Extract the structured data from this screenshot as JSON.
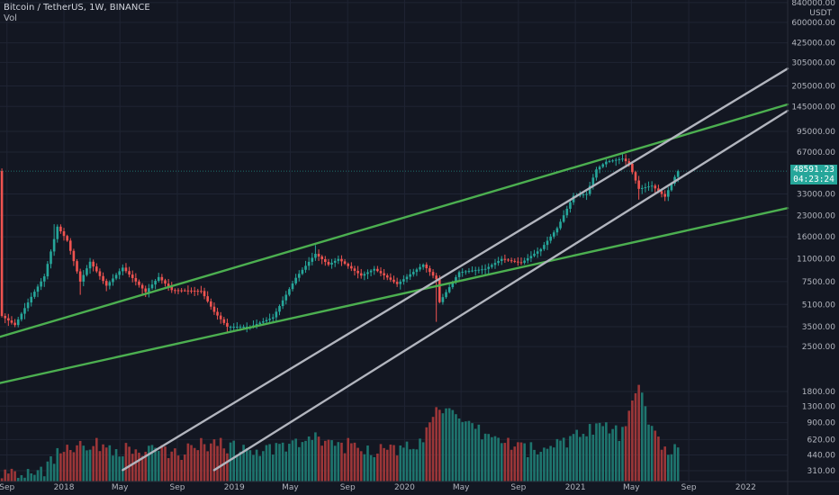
{
  "header": {
    "title": "Bitcoin / TetherUS, 1W, BINANCE",
    "volume_label": "Vol"
  },
  "price_axis": {
    "unit": "USDT"
  },
  "last_price_tag": {
    "price": "48591.23",
    "countdown": "04:23:24"
  },
  "colors": {
    "background": "#131722",
    "up": "#26a69a",
    "down": "#ef5350",
    "green_line": "#4caf50",
    "gray_line": "#b2b5be",
    "axis_text": "#b2b5be"
  },
  "chart_data": {
    "type": "candlestick",
    "title": "Bitcoin / TetherUS, 1W, BINANCE",
    "y_scale": "log",
    "y_tick_labels": [
      840000,
      600000,
      425000,
      305000,
      205000,
      145000,
      95000,
      67000,
      48591.23,
      33000,
      23000,
      16000,
      11000,
      7500,
      5100,
      3500,
      2500
    ],
    "volume_tick_labels": [
      1800,
      1300,
      900,
      620,
      440,
      310
    ],
    "x_tick_labels": [
      "Sep",
      "2018",
      "May",
      "Sep",
      "2019",
      "May",
      "Sep",
      "2020",
      "May",
      "Sep",
      "2021",
      "May",
      "Sep",
      "2022"
    ],
    "x_range": [
      "2017-08-17",
      "2022-04-01"
    ],
    "anchors": [
      {
        "date": "2017-08-21",
        "price": 4200
      },
      {
        "date": "2017-09-18",
        "price": 3600
      },
      {
        "date": "2017-10-23",
        "price": 5800
      },
      {
        "date": "2017-11-20",
        "price": 8200
      },
      {
        "date": "2017-12-18",
        "price": 19000
      },
      {
        "date": "2018-01-08",
        "price": 15000
      },
      {
        "date": "2018-02-05",
        "price": 7500
      },
      {
        "date": "2018-02-26",
        "price": 10500
      },
      {
        "date": "2018-04-02",
        "price": 7000
      },
      {
        "date": "2018-05-07",
        "price": 9500
      },
      {
        "date": "2018-06-25",
        "price": 6300
      },
      {
        "date": "2018-07-23",
        "price": 8100
      },
      {
        "date": "2018-08-20",
        "price": 6500
      },
      {
        "date": "2018-10-22",
        "price": 6400
      },
      {
        "date": "2018-11-19",
        "price": 4500
      },
      {
        "date": "2018-12-17",
        "price": 3500
      },
      {
        "date": "2019-02-04",
        "price": 3500
      },
      {
        "date": "2019-03-25",
        "price": 4100
      },
      {
        "date": "2019-05-13",
        "price": 8000
      },
      {
        "date": "2019-06-24",
        "price": 12000
      },
      {
        "date": "2019-07-22",
        "price": 10000
      },
      {
        "date": "2019-08-12",
        "price": 11000
      },
      {
        "date": "2019-09-30",
        "price": 8300
      },
      {
        "date": "2019-10-28",
        "price": 9300
      },
      {
        "date": "2019-12-16",
        "price": 7200
      },
      {
        "date": "2020-02-10",
        "price": 10000
      },
      {
        "date": "2020-03-09",
        "price": 7800
      },
      {
        "date": "2020-03-16",
        "price": 5300
      },
      {
        "date": "2020-04-27",
        "price": 8800
      },
      {
        "date": "2020-06-22",
        "price": 9300
      },
      {
        "date": "2020-07-27",
        "price": 11000
      },
      {
        "date": "2020-09-07",
        "price": 10300
      },
      {
        "date": "2020-10-19",
        "price": 13000
      },
      {
        "date": "2020-11-23",
        "price": 18500
      },
      {
        "date": "2020-12-28",
        "price": 32000
      },
      {
        "date": "2021-01-25",
        "price": 33000
      },
      {
        "date": "2021-02-15",
        "price": 50000
      },
      {
        "date": "2021-03-08",
        "price": 57000
      },
      {
        "date": "2021-04-12",
        "price": 60000
      },
      {
        "date": "2021-04-26",
        "price": 55000
      },
      {
        "date": "2021-05-17",
        "price": 36000
      },
      {
        "date": "2021-06-14",
        "price": 38000
      },
      {
        "date": "2021-07-12",
        "price": 31500
      },
      {
        "date": "2021-08-02",
        "price": 44000
      },
      {
        "date": "2021-08-09",
        "price": 48591
      }
    ],
    "extremes": [
      {
        "date": "2017-12-11",
        "high": 19800
      },
      {
        "date": "2018-02-05",
        "low": 6000
      },
      {
        "date": "2018-12-17",
        "low": 3200
      },
      {
        "date": "2019-06-24",
        "high": 13900
      },
      {
        "date": "2020-03-09",
        "low": 3800
      },
      {
        "date": "2021-04-12",
        "high": 64800
      },
      {
        "date": "2021-05-17",
        "low": 30000
      },
      {
        "date": "2021-07-19",
        "low": 29300
      }
    ],
    "volume_anchors": [
      {
        "date": "2017-08-21",
        "value": 300
      },
      {
        "date": "2017-11-20",
        "value": 330
      },
      {
        "date": "2018-01-08",
        "value": 560
      },
      {
        "date": "2018-02-05",
        "value": 580
      },
      {
        "date": "2018-06-04",
        "value": 480
      },
      {
        "date": "2018-09-10",
        "value": 470
      },
      {
        "date": "2018-11-19",
        "value": 610
      },
      {
        "date": "2018-12-17",
        "value": 540
      },
      {
        "date": "2019-02-25",
        "value": 470
      },
      {
        "date": "2019-05-13",
        "value": 560
      },
      {
        "date": "2019-06-24",
        "value": 620
      },
      {
        "date": "2019-09-30",
        "value": 520
      },
      {
        "date": "2019-12-16",
        "value": 480
      },
      {
        "date": "2020-02-10",
        "value": 600
      },
      {
        "date": "2020-03-09",
        "value": 1480
      },
      {
        "date": "2020-04-27",
        "value": 880
      },
      {
        "date": "2020-07-27",
        "value": 600
      },
      {
        "date": "2020-10-19",
        "value": 470
      },
      {
        "date": "2020-12-28",
        "value": 680
      },
      {
        "date": "2021-02-15",
        "value": 860
      },
      {
        "date": "2021-04-12",
        "value": 710
      },
      {
        "date": "2021-05-17",
        "value": 1950
      },
      {
        "date": "2021-06-14",
        "value": 780
      },
      {
        "date": "2021-07-12",
        "value": 530
      },
      {
        "date": "2021-08-09",
        "value": 460
      }
    ],
    "trend_lines": [
      {
        "color": "green",
        "p1": {
          "date": "2017-08-17",
          "price": 2950
        },
        "p2": {
          "date": "2022-04-01",
          "price": 150000
        }
      },
      {
        "color": "green",
        "p1": {
          "date": "2017-08-17",
          "price": 1350
        },
        "p2": {
          "date": "2022-04-01",
          "price": 26000
        }
      },
      {
        "color": "gray",
        "p1": {
          "date": "2018-05-07",
          "price": 310
        },
        "p2": {
          "date": "2022-04-01",
          "price": 275000
        }
      },
      {
        "color": "gray",
        "p1": {
          "date": "2018-11-19",
          "price": 310
        },
        "p2": {
          "date": "2022-04-01",
          "price": 135000
        }
      }
    ]
  }
}
